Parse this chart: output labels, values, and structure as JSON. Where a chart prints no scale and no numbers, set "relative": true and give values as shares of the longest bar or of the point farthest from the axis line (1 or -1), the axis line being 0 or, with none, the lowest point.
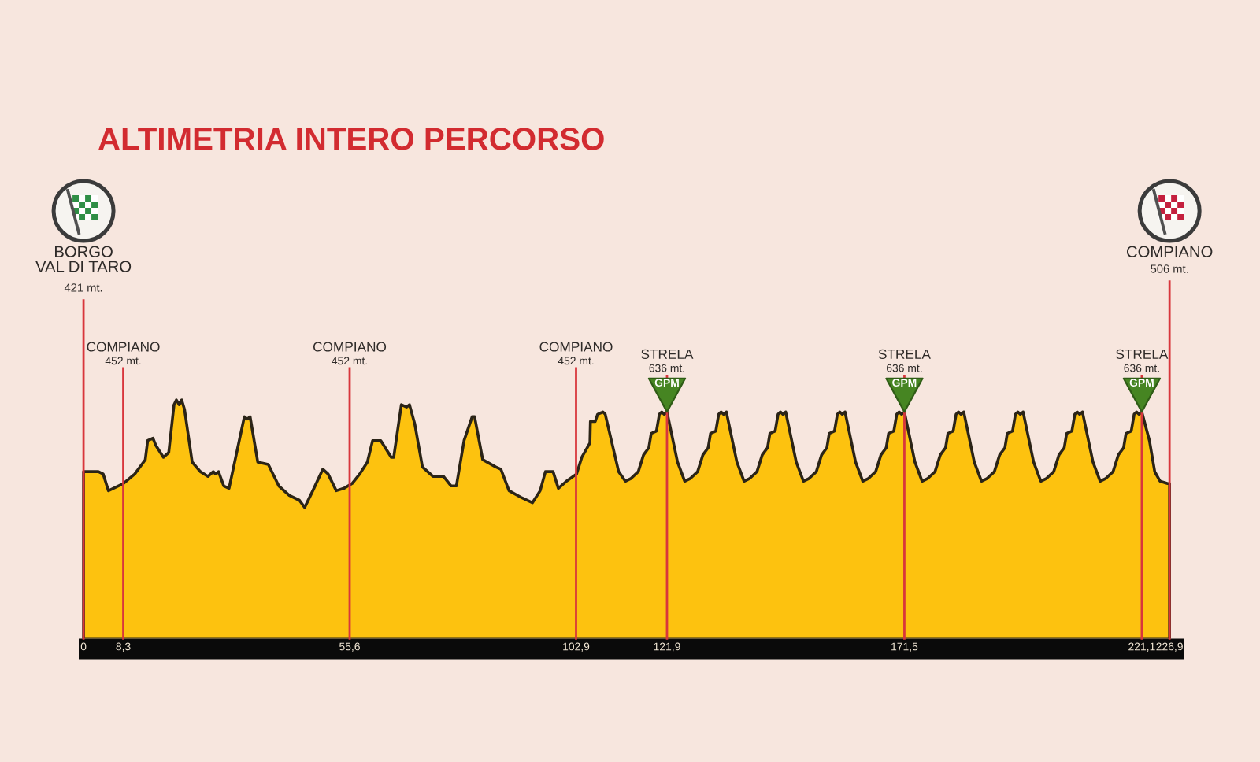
{
  "chart_data": {
    "type": "area",
    "title": "ALTIMETRIA INTERO PERCORSO",
    "relative": true,
    "x": [
      0,
      3.1,
      4.1,
      5.2,
      8.3,
      10.7,
      12.9,
      13.4,
      14.5,
      15.1,
      16.7,
      17.8,
      18.9,
      19.4,
      20.0,
      20.5,
      21.1,
      22.7,
      24.4,
      26.0,
      27.1,
      27.6,
      28.2,
      29.3,
      30.4,
      32.0,
      33.6,
      34.2,
      34.8,
      36.4,
      38.6,
      40.8,
      43.0,
      45.1,
      46.2,
      47.9,
      50.0,
      51.1,
      52.8,
      54.4,
      56.1,
      57.7,
      59.3,
      60.4,
      62.1,
      64.3,
      64.8,
      66.4,
      67.5,
      68.1,
      69.2,
      70.8,
      73.0,
      75.2,
      76.8,
      77.9,
      79.5,
      81.2,
      81.7,
      83.4,
      86.1,
      87.2,
      88.9,
      91.6,
      93.8,
      95.4,
      96.5,
      98.1,
      99.2,
      100.9,
      103.0,
      104.1,
      105.8,
      105.9,
      106.9,
      107.4,
      108.5,
      109.0,
      111.8,
      113.2,
      114.3,
      115.9,
      117.0,
      118.1,
      118.6,
      119.7,
      120.3,
      120.8,
      121.3,
      121.9,
      124.1,
      125.6,
      126.7,
      128.3,
      129.4,
      130.5,
      131.0,
      132.1,
      132.7,
      133.2,
      133.7,
      134.3,
      136.5,
      138.0,
      139.1,
      140.7,
      141.8,
      142.9,
      143.4,
      144.5,
      145.1,
      145.6,
      146.1,
      146.7,
      148.9,
      150.4,
      151.5,
      153.1,
      154.2,
      155.3,
      155.8,
      156.9,
      157.5,
      158.0,
      158.5,
      159.1,
      161.3,
      162.8,
      163.9,
      165.5,
      166.6,
      167.7,
      168.2,
      169.3,
      169.9,
      170.4,
      170.9,
      171.5,
      173.7,
      175.2,
      176.3,
      177.9,
      179.0,
      180.1,
      180.6,
      181.7,
      182.3,
      182.8,
      183.3,
      183.9,
      186.1,
      187.6,
      188.7,
      190.3,
      191.4,
      192.5,
      193.0,
      194.1,
      194.7,
      195.2,
      195.7,
      196.3,
      198.5,
      200.0,
      201.1,
      202.7,
      203.8,
      204.9,
      205.4,
      206.5,
      207.1,
      207.6,
      208.1,
      208.7,
      210.9,
      212.4,
      213.5,
      215.1,
      216.2,
      217.3,
      217.8,
      218.9,
      219.5,
      220.0,
      220.5,
      221.1,
      222.7,
      223.8,
      224.9,
      226.5,
      226.9
    ],
    "series": [
      {
        "color": "#fdc20f",
        "values": [
          0.7,
          0.7,
          0.69,
          0.62,
          0.65,
          0.69,
          0.75,
          0.83,
          0.84,
          0.81,
          0.76,
          0.78,
          0.98,
          1.0,
          0.98,
          1.0,
          0.96,
          0.74,
          0.7,
          0.68,
          0.7,
          0.69,
          0.7,
          0.64,
          0.63,
          0.78,
          0.93,
          0.92,
          0.93,
          0.74,
          0.73,
          0.64,
          0.6,
          0.58,
          0.55,
          0.62,
          0.71,
          0.69,
          0.62,
          0.63,
          0.65,
          0.69,
          0.74,
          0.83,
          0.83,
          0.76,
          0.76,
          0.98,
          0.97,
          0.98,
          0.9,
          0.72,
          0.68,
          0.68,
          0.64,
          0.64,
          0.83,
          0.93,
          0.93,
          0.75,
          0.72,
          0.71,
          0.62,
          0.59,
          0.57,
          0.62,
          0.7,
          0.7,
          0.63,
          0.66,
          0.69,
          0.76,
          0.82,
          0.91,
          0.91,
          0.94,
          0.95,
          0.94,
          0.7,
          0.66,
          0.67,
          0.7,
          0.77,
          0.8,
          0.86,
          0.87,
          0.94,
          0.95,
          0.94,
          0.95,
          0.74,
          0.66,
          0.67,
          0.7,
          0.77,
          0.8,
          0.86,
          0.87,
          0.94,
          0.95,
          0.94,
          0.95,
          0.74,
          0.66,
          0.67,
          0.7,
          0.77,
          0.8,
          0.86,
          0.87,
          0.94,
          0.95,
          0.94,
          0.95,
          0.74,
          0.66,
          0.67,
          0.7,
          0.77,
          0.8,
          0.86,
          0.87,
          0.94,
          0.95,
          0.94,
          0.95,
          0.74,
          0.66,
          0.67,
          0.7,
          0.77,
          0.8,
          0.86,
          0.87,
          0.94,
          0.95,
          0.94,
          0.95,
          0.74,
          0.66,
          0.67,
          0.7,
          0.77,
          0.8,
          0.86,
          0.87,
          0.94,
          0.95,
          0.94,
          0.95,
          0.74,
          0.66,
          0.67,
          0.7,
          0.77,
          0.8,
          0.86,
          0.87,
          0.94,
          0.95,
          0.94,
          0.95,
          0.74,
          0.66,
          0.67,
          0.7,
          0.77,
          0.8,
          0.86,
          0.87,
          0.94,
          0.95,
          0.94,
          0.95,
          0.74,
          0.66,
          0.67,
          0.7,
          0.77,
          0.8,
          0.86,
          0.87,
          0.94,
          0.95,
          0.94,
          0.95,
          0.83,
          0.7,
          0.66,
          0.65,
          0.65
        ]
      }
    ],
    "xlim": [
      -1,
      230
    ],
    "xticks": [
      0,
      {
        "value": 8.3,
        "label": "8,3"
      },
      {
        "value": 55.6,
        "label": "55,6"
      },
      {
        "value": 102.9,
        "label": "102,9"
      },
      {
        "value": 121.9,
        "label": "121,9"
      },
      {
        "value": 171.5,
        "label": "171,5"
      },
      {
        "value": 221.1,
        "label": "221,1"
      },
      {
        "value": 226.9,
        "label": "226,9"
      }
    ],
    "tick_labels": "x",
    "ref_lines": [
      {
        "axis": "x",
        "value": 0,
        "label": "BORGO\nVAL DI TARO\n421 mt.",
        "color": "#d8363c"
      },
      {
        "axis": "x",
        "value": 8.3,
        "label": "COMPIANO\n452 mt.",
        "color": "#d8363c"
      },
      {
        "axis": "x",
        "value": 55.6,
        "label": "COMPIANO\n452 mt.",
        "color": "#d8363c"
      },
      {
        "axis": "x",
        "value": 102.9,
        "label": "COMPIANO\n452 mt.",
        "color": "#d8363c"
      },
      {
        "axis": "x",
        "value": 121.9,
        "label": "STRELA\n636 mt.",
        "color": "#d8363c"
      },
      {
        "axis": "x",
        "value": 171.5,
        "label": "STRELA\n636 mt.",
        "color": "#d8363c"
      },
      {
        "axis": "x",
        "value": 221.1,
        "label": "STRELA\n636 mt.",
        "color": "#d8363c"
      },
      {
        "axis": "x",
        "value": 226.9,
        "label": "COMPIANO\n506 mt.",
        "color": "#d8363c"
      }
    ],
    "annotations": [
      {
        "text": "GPM",
        "x": 121.9,
        "y": 0.95
      },
      {
        "text": "GPM",
        "x": 171.5,
        "y": 0.95
      },
      {
        "text": "GPM",
        "x": 221.1,
        "y": 0.95
      }
    ]
  }
}
